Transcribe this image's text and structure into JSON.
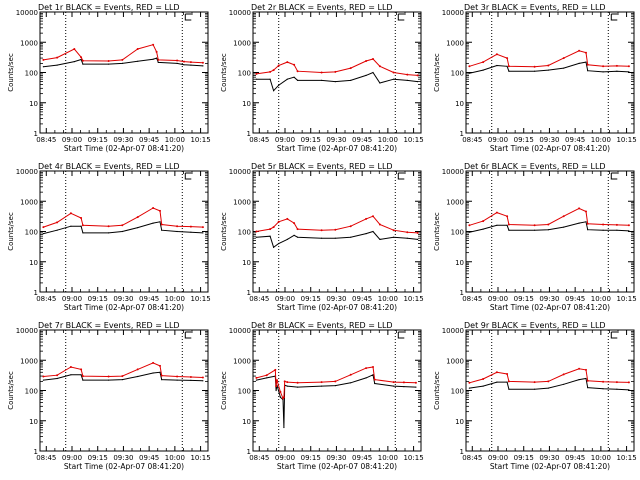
{
  "figure": {
    "start_label": "Start Time (02-Apr-07 08:41:20)",
    "y_label": "Counts/sec",
    "legend_text": "BLACK = Events, RED = LLD",
    "colors": {
      "events": "#000000",
      "lld": "#e00000",
      "markers": "#000000"
    }
  },
  "chart_data": [
    {
      "type": "line",
      "title": "Det 1r BLACK = Events, RED = LLD",
      "xlabel": "Start Time (02-Apr-07 08:41:20)",
      "ylabel": "Counts/sec",
      "x_ticks": [
        "08:45",
        "09:00",
        "09:15",
        "09:30",
        "09:45",
        "10:00",
        "10:15"
      ],
      "y_ticks": [
        "1",
        "10",
        "100",
        "1000",
        "10000"
      ],
      "ylim": [
        1,
        10000
      ],
      "xlim_minutes": [
        0,
        98
      ],
      "markers_minutes": [
        15,
        83
      ],
      "series": [
        {
          "name": "Events",
          "minutes": [
            2,
            10,
            20,
            24,
            25,
            40,
            48,
            57,
            66,
            68,
            69,
            80,
            84,
            88,
            95
          ],
          "values": [
            155,
            175,
            230,
            270,
            190,
            190,
            200,
            235,
            275,
            300,
            215,
            200,
            180,
            175,
            165
          ]
        },
        {
          "name": "LLD",
          "minutes": [
            2,
            10,
            20,
            24,
            25,
            40,
            48,
            57,
            66,
            68,
            69,
            80,
            84,
            88,
            95
          ],
          "values": [
            260,
            310,
            600,
            320,
            245,
            240,
            260,
            600,
            830,
            480,
            260,
            250,
            230,
            220,
            210
          ]
        }
      ]
    },
    {
      "type": "line",
      "title": "Det 2r BLACK = Events, RED = LLD",
      "xlabel": "Start Time (02-Apr-07 08:41:20)",
      "ylabel": "Counts/sec",
      "x_ticks": [
        "08:45",
        "09:00",
        "09:15",
        "09:30",
        "09:45",
        "10:00",
        "10:15"
      ],
      "y_ticks": [
        "1",
        "10",
        "100",
        "1000",
        "10000"
      ],
      "ylim": [
        1,
        10000
      ],
      "xlim_minutes": [
        0,
        98
      ],
      "markers_minutes": [
        15,
        83
      ],
      "series": [
        {
          "name": "Events",
          "minutes": [
            2,
            10,
            12,
            15,
            20,
            24,
            26,
            40,
            48,
            57,
            66,
            70,
            74,
            82,
            90,
            96
          ],
          "values": [
            60,
            60,
            25,
            38,
            60,
            70,
            55,
            55,
            50,
            55,
            80,
            100,
            45,
            60,
            55,
            50
          ]
        },
        {
          "name": "LLD",
          "minutes": [
            2,
            10,
            12,
            15,
            20,
            24,
            26,
            40,
            48,
            57,
            66,
            70,
            74,
            82,
            90,
            96
          ],
          "values": [
            90,
            105,
            120,
            170,
            220,
            180,
            110,
            100,
            105,
            140,
            240,
            280,
            160,
            100,
            85,
            80
          ]
        }
      ]
    },
    {
      "type": "line",
      "title": "Det 3r BLACK = Events, RED = LLD",
      "xlabel": "Start Time (02-Apr-07 08:41:20)",
      "ylabel": "Counts/sec",
      "x_ticks": [
        "08:45",
        "09:00",
        "09:15",
        "09:30",
        "09:45",
        "10:00",
        "10:15"
      ],
      "y_ticks": [
        "1",
        "10",
        "100",
        "1000",
        "10000"
      ],
      "ylim": [
        1,
        10000
      ],
      "xlim_minutes": [
        0,
        98
      ],
      "markers_minutes": [
        15,
        83
      ],
      "series": [
        {
          "name": "Events",
          "minutes": [
            2,
            10,
            18,
            24,
            25,
            40,
            48,
            57,
            66,
            70,
            71,
            80,
            88,
            95
          ],
          "values": [
            95,
            120,
            170,
            160,
            110,
            110,
            120,
            140,
            200,
            220,
            115,
            105,
            110,
            105
          ]
        },
        {
          "name": "LLD",
          "minutes": [
            2,
            10,
            18,
            24,
            25,
            40,
            48,
            57,
            66,
            70,
            71,
            80,
            88,
            95
          ],
          "values": [
            160,
            220,
            400,
            300,
            160,
            155,
            170,
            300,
            520,
            450,
            180,
            160,
            165,
            160
          ]
        }
      ]
    },
    {
      "type": "line",
      "title": "Det 4r BLACK = Events, RED = LLD",
      "xlabel": "Start Time (02-Apr-07 08:41:20)",
      "ylabel": "Counts/sec",
      "x_ticks": [
        "08:45",
        "09:00",
        "09:15",
        "09:30",
        "09:45",
        "10:00",
        "10:15"
      ],
      "y_ticks": [
        "1",
        "10",
        "100",
        "1000",
        "10000"
      ],
      "ylim": [
        1,
        10000
      ],
      "xlim_minutes": [
        0,
        98
      ],
      "markers_minutes": [
        15,
        83
      ],
      "series": [
        {
          "name": "Events",
          "minutes": [
            2,
            10,
            18,
            24,
            25,
            40,
            48,
            57,
            66,
            70,
            71,
            80,
            88,
            95
          ],
          "values": [
            85,
            110,
            150,
            150,
            90,
            90,
            100,
            135,
            190,
            210,
            110,
            100,
            95,
            90
          ]
        },
        {
          "name": "LLD",
          "minutes": [
            2,
            10,
            18,
            24,
            25,
            40,
            48,
            57,
            66,
            70,
            71,
            80,
            88,
            95
          ],
          "values": [
            140,
            200,
            400,
            280,
            160,
            150,
            160,
            300,
            600,
            480,
            170,
            150,
            145,
            140
          ]
        }
      ]
    },
    {
      "type": "line",
      "title": "Det 5r BLACK = Events, RED = LLD",
      "xlabel": "Start Time (02-Apr-07 08:41:20)",
      "ylabel": "Counts/sec",
      "x_ticks": [
        "08:45",
        "09:00",
        "09:15",
        "09:30",
        "09:45",
        "10:00",
        "10:15"
      ],
      "y_ticks": [
        "1",
        "10",
        "100",
        "1000",
        "10000"
      ],
      "ylim": [
        1,
        10000
      ],
      "xlim_minutes": [
        0,
        98
      ],
      "markers_minutes": [
        15,
        83
      ],
      "series": [
        {
          "name": "Events",
          "minutes": [
            2,
            10,
            12,
            15,
            20,
            24,
            26,
            40,
            48,
            57,
            66,
            70,
            74,
            82,
            90,
            96
          ],
          "values": [
            65,
            70,
            30,
            40,
            55,
            75,
            65,
            60,
            60,
            65,
            85,
            100,
            55,
            65,
            60,
            55
          ]
        },
        {
          "name": "LLD",
          "minutes": [
            2,
            10,
            12,
            15,
            20,
            24,
            26,
            40,
            48,
            57,
            66,
            70,
            74,
            82,
            90,
            96
          ],
          "values": [
            100,
            120,
            140,
            210,
            260,
            190,
            120,
            110,
            115,
            150,
            260,
            320,
            170,
            110,
            95,
            90
          ]
        }
      ]
    },
    {
      "type": "line",
      "title": "Det 6r BLACK = Events, RED = LLD",
      "xlabel": "Start Time (02-Apr-07 08:41:20)",
      "ylabel": "Counts/sec",
      "x_ticks": [
        "08:45",
        "09:00",
        "09:15",
        "09:30",
        "09:45",
        "10:00",
        "10:15"
      ],
      "y_ticks": [
        "1",
        "10",
        "100",
        "1000",
        "10000"
      ],
      "ylim": [
        1,
        10000
      ],
      "xlim_minutes": [
        0,
        98
      ],
      "markers_minutes": [
        15,
        83
      ],
      "series": [
        {
          "name": "Events",
          "minutes": [
            2,
            10,
            18,
            24,
            25,
            40,
            48,
            57,
            66,
            70,
            71,
            80,
            88,
            95
          ],
          "values": [
            95,
            120,
            160,
            160,
            110,
            110,
            115,
            140,
            190,
            210,
            115,
            110,
            110,
            105
          ]
        },
        {
          "name": "LLD",
          "minutes": [
            2,
            10,
            18,
            24,
            25,
            40,
            48,
            57,
            66,
            70,
            71,
            80,
            88,
            95
          ],
          "values": [
            160,
            220,
            420,
            320,
            170,
            160,
            170,
            320,
            580,
            460,
            180,
            170,
            165,
            160
          ]
        }
      ]
    },
    {
      "type": "line",
      "title": "Det 7r BLACK = Events, RED = LLD",
      "xlabel": "Start Time (02-Apr-07 08:41:20)",
      "ylabel": "Counts/sec",
      "x_ticks": [
        "08:45",
        "09:00",
        "09:15",
        "09:30",
        "09:45",
        "10:00",
        "10:15"
      ],
      "y_ticks": [
        "1",
        "10",
        "100",
        "1000",
        "10000"
      ],
      "ylim": [
        1,
        10000
      ],
      "xlim_minutes": [
        0,
        98
      ],
      "markers_minutes": [
        15,
        83
      ],
      "series": [
        {
          "name": "Events",
          "minutes": [
            2,
            10,
            18,
            24,
            25,
            40,
            48,
            57,
            66,
            70,
            71,
            80,
            88,
            95
          ],
          "values": [
            220,
            250,
            330,
            330,
            220,
            220,
            230,
            290,
            380,
            400,
            230,
            220,
            215,
            210
          ]
        },
        {
          "name": "LLD",
          "minutes": [
            2,
            10,
            18,
            24,
            25,
            40,
            48,
            57,
            66,
            70,
            71,
            80,
            88,
            95
          ],
          "values": [
            290,
            320,
            600,
            500,
            300,
            290,
            300,
            500,
            820,
            650,
            310,
            290,
            280,
            270
          ]
        }
      ]
    },
    {
      "type": "line",
      "title": "Det 8r BLACK = Events, RED = LLD",
      "xlabel": "Start Time (02-Apr-07 08:41:20)",
      "ylabel": "Counts/sec",
      "x_ticks": [
        "08:45",
        "09:00",
        "09:15",
        "09:30",
        "09:45",
        "10:00",
        "10:15"
      ],
      "y_ticks": [
        "1",
        "10",
        "100",
        "1000",
        "10000"
      ],
      "ylim": [
        1,
        10000
      ],
      "xlim_minutes": [
        0,
        98
      ],
      "markers_minutes": [
        15,
        83
      ],
      "series": [
        {
          "name": "Events",
          "minutes": [
            2,
            8,
            13,
            13.5,
            14,
            16,
            17.5,
            18,
            18.5,
            20,
            26,
            40,
            48,
            57,
            66,
            70,
            71,
            82,
            88,
            95
          ],
          "values": [
            220,
            260,
            300,
            100,
            150,
            60,
            50,
            6,
            150,
            140,
            130,
            140,
            145,
            180,
            260,
            330,
            170,
            140,
            135,
            130
          ]
        },
        {
          "name": "LLD",
          "minutes": [
            2,
            8,
            13,
            13.5,
            14,
            16,
            17.5,
            18,
            18.5,
            20,
            26,
            40,
            48,
            57,
            66,
            70,
            71,
            82,
            88,
            95
          ],
          "values": [
            260,
            320,
            480,
            140,
            220,
            90,
            55,
            60,
            200,
            190,
            180,
            190,
            200,
            330,
            550,
            600,
            230,
            190,
            185,
            180
          ]
        }
      ]
    },
    {
      "type": "line",
      "title": "Det 9r BLACK = Events, RED = LLD",
      "xlabel": "Start Time (02-Apr-07 08:41:20)",
      "ylabel": "Counts/sec",
      "x_ticks": [
        "08:45",
        "09:00",
        "09:15",
        "09:30",
        "09:45",
        "10:00",
        "10:15"
      ],
      "y_ticks": [
        "1",
        "10",
        "100",
        "1000",
        "10000"
      ],
      "ylim": [
        1,
        10000
      ],
      "xlim_minutes": [
        0,
        98
      ],
      "markers_minutes": [
        15,
        83
      ],
      "series": [
        {
          "name": "Events",
          "minutes": [
            2,
            10,
            18,
            24,
            25,
            40,
            48,
            57,
            66,
            70,
            71,
            80,
            88,
            95
          ],
          "values": [
            120,
            140,
            190,
            190,
            110,
            110,
            120,
            160,
            230,
            250,
            125,
            115,
            110,
            105
          ]
        },
        {
          "name": "LLD",
          "minutes": [
            2,
            10,
            18,
            24,
            25,
            40,
            48,
            57,
            66,
            70,
            71,
            80,
            88,
            95
          ],
          "values": [
            180,
            240,
            400,
            350,
            200,
            190,
            200,
            340,
            520,
            480,
            210,
            195,
            190,
            185
          ]
        }
      ]
    }
  ]
}
